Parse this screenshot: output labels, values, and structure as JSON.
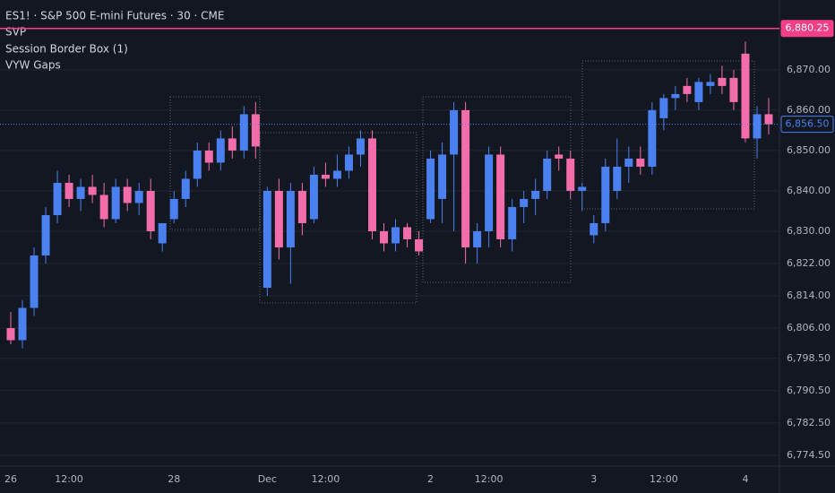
{
  "chart_data": {
    "type": "candlestick",
    "title": "ES1! · S&P 500 E-mini Futures · 30 · CME",
    "indicators": [
      "SVP",
      "Session Border Box (1)",
      "VYW Gaps"
    ],
    "categories": [
      "26",
      null,
      null,
      null,
      null,
      "12:00",
      null,
      null,
      null,
      null,
      null,
      null,
      null,
      null,
      "28",
      null,
      null,
      null,
      null,
      null,
      null,
      null,
      "Dec",
      null,
      null,
      null,
      null,
      "12:00",
      null,
      null,
      null,
      null,
      null,
      null,
      null,
      null,
      "2",
      null,
      null,
      null,
      null,
      "12:00",
      null,
      null,
      null,
      null,
      null,
      null,
      null,
      null,
      "3",
      null,
      null,
      null,
      null,
      null,
      "12:00",
      null,
      null,
      null,
      null,
      null,
      null,
      "4",
      null,
      null
    ],
    "open": [
      6806,
      6803,
      6811,
      6824,
      6834,
      6842,
      6838,
      6841,
      6839,
      6833,
      6841,
      6837,
      6840,
      6827,
      6833,
      6838,
      6843,
      6850,
      6847,
      6853,
      6850,
      6859,
      6816,
      6840,
      6826,
      6840,
      6833,
      6844,
      6843,
      6845,
      6849,
      6853,
      6830,
      6827,
      6831,
      6828,
      6833,
      6838,
      6849,
      6860,
      6826,
      6830,
      6849,
      6828,
      6836,
      6838,
      6840,
      6849,
      6848,
      6840,
      6829,
      6832,
      6840,
      6846,
      6848,
      6846,
      6858,
      6863,
      6866,
      6862,
      6866,
      6868,
      6868,
      6874,
      6853,
      6859
    ],
    "high": [
      6810,
      6813,
      6826,
      6836,
      6845,
      6844,
      6843,
      6844,
      6842,
      6843,
      6843,
      6842,
      6843,
      6831,
      6840,
      6845,
      6852,
      6852,
      6855,
      6856,
      6861,
      6862,
      6841,
      6843,
      6842,
      6842,
      6846,
      6847,
      6849,
      6851,
      6855,
      6855,
      6832,
      6833,
      6832,
      6830,
      6850,
      6852,
      6862,
      6862,
      6832,
      6851,
      6851,
      6838,
      6840,
      6843,
      6850,
      6851,
      6850,
      6842,
      6834,
      6848,
      6853,
      6851,
      6851,
      6862,
      6864,
      6866,
      6868,
      6868,
      6869,
      6871,
      6870,
      6877,
      6861,
      6863
    ],
    "low": [
      6802,
      6801,
      6809,
      6822,
      6832,
      6836,
      6835,
      6837,
      6831,
      6832,
      6835,
      6834,
      6828,
      6825,
      6832,
      6836,
      6841,
      6845,
      6845,
      6848,
      6848,
      6848,
      6814,
      6823,
      6817,
      6829,
      6832,
      6841,
      6841,
      6843,
      6846,
      6828,
      6825,
      6825,
      6826,
      6824,
      6832,
      6832,
      6830,
      6822,
      6822,
      6826,
      6826,
      6825,
      6832,
      6834,
      6838,
      6845,
      6838,
      6835,
      6827,
      6830,
      6838,
      6842,
      6844,
      6844,
      6855,
      6860,
      6862,
      6860,
      6864,
      6864,
      6860,
      6852,
      6848,
      6854
    ],
    "close": [
      6803,
      6811,
      6824,
      6834,
      6842,
      6838,
      6841,
      6839,
      6833,
      6841,
      6837,
      6840,
      6830,
      6832,
      6838,
      6843,
      6850,
      6847,
      6853,
      6850,
      6859,
      6851,
      6840,
      6826,
      6840,
      6832,
      6844,
      6843,
      6845,
      6849,
      6853,
      6830,
      6827,
      6831,
      6828,
      6825,
      6848,
      6849,
      6860,
      6826,
      6830,
      6849,
      6828,
      6836,
      6838,
      6840,
      6848,
      6848,
      6840,
      6841,
      6832,
      6846,
      6846,
      6848,
      6846,
      6860,
      6863,
      6864,
      6864,
      6867,
      6867,
      6866,
      6862,
      6853,
      6859,
      6856.5
    ],
    "up_color": "#4a80f0",
    "down_color": "#f26da9",
    "ylim": [
      6771.8,
      6887.3
    ],
    "yticks": [
      {
        "value": 6774.5,
        "label": "6,774.50"
      },
      {
        "value": 6782.5,
        "label": "6,782.50"
      },
      {
        "value": 6790.5,
        "label": "6,790.50"
      },
      {
        "value": 6798.5,
        "label": "6,798.50"
      },
      {
        "value": 6806,
        "label": "6,806.00"
      },
      {
        "value": 6814,
        "label": "6,814.00"
      },
      {
        "value": 6822,
        "label": "6,822.00"
      },
      {
        "value": 6830,
        "label": "6,830.00"
      },
      {
        "value": 6840,
        "label": "6,840.00"
      },
      {
        "value": 6850,
        "label": "6,850.00"
      },
      {
        "value": 6860,
        "label": "6,860.00"
      },
      {
        "value": 6870,
        "label": "6,870.00"
      }
    ],
    "grid": true,
    "price_lines": [
      {
        "value": 6880.25,
        "label": "6,880.25",
        "color": "#f23f86"
      },
      {
        "value": 6856.5,
        "label": "6,856.50",
        "color": "#4a80f0"
      }
    ]
  }
}
